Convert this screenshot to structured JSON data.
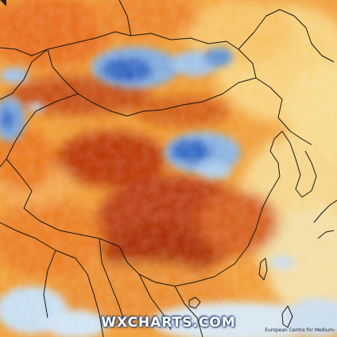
{
  "map": {
    "watermark": "WXCHARTS.COM",
    "credit": "European Centre for Medium-",
    "palette": {
      "hot": "#b83200",
      "warm": "#e06a10",
      "mild": "#f4a63a",
      "light": "#f8d98a",
      "cool": "#b9d6ee",
      "cold": "#5a8fd0",
      "coldest": "#1f55b8",
      "border": "#1a1a1a",
      "sea": "#cfe3f2"
    }
  }
}
